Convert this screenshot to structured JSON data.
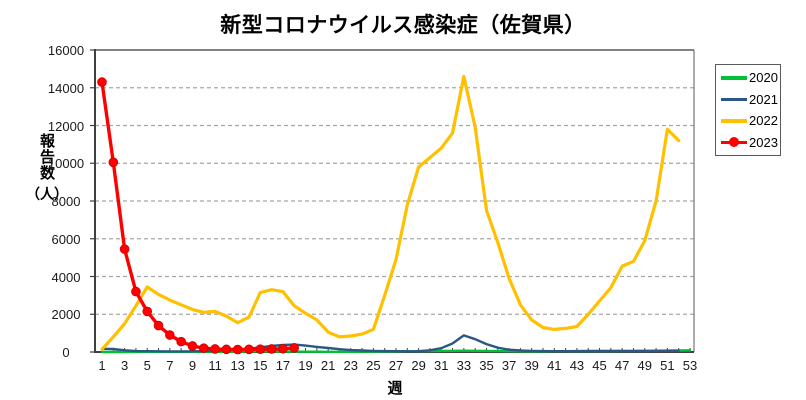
{
  "title": "新型コロナウイルス感染症（佐賀県）",
  "y_axis": {
    "title_vertical": "報告数",
    "title_unit": "（人）",
    "tick_values": [
      0,
      2000,
      4000,
      6000,
      8000,
      10000,
      12000,
      14000,
      16000
    ]
  },
  "x_axis": {
    "title": "週",
    "tick_labels": [
      1,
      3,
      5,
      7,
      9,
      11,
      13,
      15,
      17,
      19,
      21,
      23,
      25,
      27,
      29,
      31,
      33,
      35,
      37,
      39,
      41,
      43,
      45,
      47,
      49,
      51,
      53
    ]
  },
  "colors": {
    "grid": "#a6a6a6",
    "axis": "#404040",
    "plot_border": "#7f7f7f",
    "background": "#ffffff"
  },
  "chart_data": {
    "type": "line",
    "title": "新型コロナウイルス感染症（佐賀県）",
    "xlabel": "週",
    "ylabel": "報告数（人）",
    "x_range": [
      1,
      53
    ],
    "ylim": [
      0,
      16000
    ],
    "y_tick_step": 2000,
    "grid": "horizontal-dashed",
    "legend_position": "right",
    "series": [
      {
        "name": "2020",
        "color": "#00c038",
        "marker": false,
        "x_start": 1,
        "values": [
          2,
          2,
          2,
          3,
          3,
          3,
          3,
          4,
          5,
          5,
          6,
          10,
          15,
          25,
          30,
          30,
          25,
          20,
          15,
          15,
          10,
          10,
          10,
          15,
          15,
          20,
          25,
          35,
          45,
          55,
          60,
          65,
          70,
          65,
          60,
          50,
          40,
          35,
          30,
          30,
          35,
          40,
          40,
          45,
          50,
          50,
          55,
          60,
          65,
          70,
          75,
          80,
          90
        ]
      },
      {
        "name": "2021",
        "color": "#2a5784",
        "marker": false,
        "x_start": 1,
        "values": [
          170,
          160,
          90,
          50,
          40,
          35,
          30,
          30,
          35,
          45,
          60,
          90,
          130,
          180,
          250,
          320,
          370,
          390,
          340,
          270,
          210,
          150,
          100,
          80,
          60,
          50,
          40,
          35,
          40,
          90,
          200,
          450,
          880,
          680,
          420,
          230,
          120,
          80,
          60,
          50,
          45,
          45,
          50,
          55,
          60,
          60,
          55,
          50,
          55,
          60,
          65,
          70
        ]
      },
      {
        "name": "2022",
        "color": "#ffc000",
        "marker": false,
        "x_start": 1,
        "values": [
          150,
          800,
          1500,
          2450,
          3450,
          3050,
          2750,
          2500,
          2250,
          2100,
          2150,
          1900,
          1550,
          1850,
          3150,
          3300,
          3200,
          2450,
          2050,
          1700,
          1050,
          800,
          850,
          950,
          1200,
          3000,
          4900,
          7800,
          9800,
          10300,
          10800,
          11600,
          14600,
          11900,
          7500,
          5800,
          3900,
          2500,
          1700,
          1300,
          1200,
          1250,
          1350,
          2000,
          2700,
          3400,
          4550,
          4800,
          5900,
          8000,
          11800,
          11200
        ]
      },
      {
        "name": "2023",
        "color": "#ff0000",
        "marker": "circle",
        "x_start": 1,
        "values": [
          14300,
          10050,
          5450,
          3200,
          2150,
          1400,
          900,
          550,
          320,
          200,
          160,
          140,
          130,
          140,
          150,
          160,
          170,
          220
        ]
      }
    ]
  }
}
